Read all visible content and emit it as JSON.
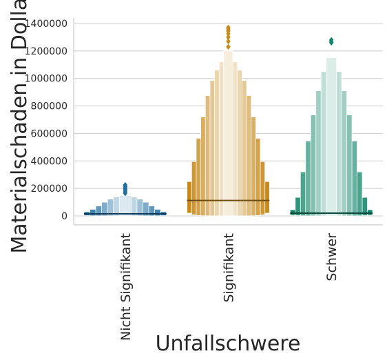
{
  "chart_data": {
    "type": "boxen",
    "xlabel": "Unfallschwere",
    "ylabel": "Materialschaden in Dollar",
    "ylim": [
      -65000,
      1440000
    ],
    "yticks": [
      0,
      200000,
      400000,
      600000,
      800000,
      1000000,
      1200000,
      1400000
    ],
    "ytick_labels": [
      "0",
      "200000",
      "400000",
      "600000",
      "800000",
      "1000000",
      "1200000",
      "1400000"
    ],
    "grid": "horizontal",
    "categories": [
      "Nicht Signifikant",
      "Signifikant",
      "Schwer"
    ],
    "series": [
      {
        "category": "Nicht Signifikant",
        "color": "#1f6fa3",
        "median": 15000,
        "boxes": [
          {
            "lower": 2000,
            "upper": 30000
          },
          {
            "lower": 800,
            "upper": 48000
          },
          {
            "lower": 300,
            "upper": 72000
          },
          {
            "lower": 100,
            "upper": 100000
          },
          {
            "lower": 50,
            "upper": 122000
          },
          {
            "lower": 20,
            "upper": 138000
          },
          {
            "lower": 10,
            "upper": 150000
          }
        ],
        "outliers": [
          165000,
          175000,
          185000,
          195000,
          205000,
          215000,
          225000
        ]
      },
      {
        "category": "Signifikant",
        "color": "#c88a1c",
        "median": 112000,
        "boxes": [
          {
            "lower": 20000,
            "upper": 250000
          },
          {
            "lower": 8000,
            "upper": 395000
          },
          {
            "lower": 3000,
            "upper": 565000
          },
          {
            "lower": 1000,
            "upper": 720000
          },
          {
            "lower": 500,
            "upper": 875000
          },
          {
            "lower": 200,
            "upper": 985000
          },
          {
            "lower": 100,
            "upper": 1060000
          },
          {
            "lower": 50,
            "upper": 1120000
          },
          {
            "lower": 20,
            "upper": 1200000
          }
        ],
        "outliers": [
          1230000,
          1270000,
          1300000,
          1325000,
          1345000,
          1360000,
          1370000
        ]
      },
      {
        "category": "Schwer",
        "color": "#12856a",
        "median": 20000,
        "boxes": [
          {
            "lower": 5000,
            "upper": 45000
          },
          {
            "lower": 2000,
            "upper": 135000
          },
          {
            "lower": 800,
            "upper": 320000
          },
          {
            "lower": 300,
            "upper": 545000
          },
          {
            "lower": 100,
            "upper": 735000
          },
          {
            "lower": 50,
            "upper": 910000
          },
          {
            "lower": 20,
            "upper": 1050000
          },
          {
            "lower": 10,
            "upper": 1150000
          }
        ],
        "outliers": [
          1260000,
          1270000,
          1280000
        ]
      }
    ]
  }
}
